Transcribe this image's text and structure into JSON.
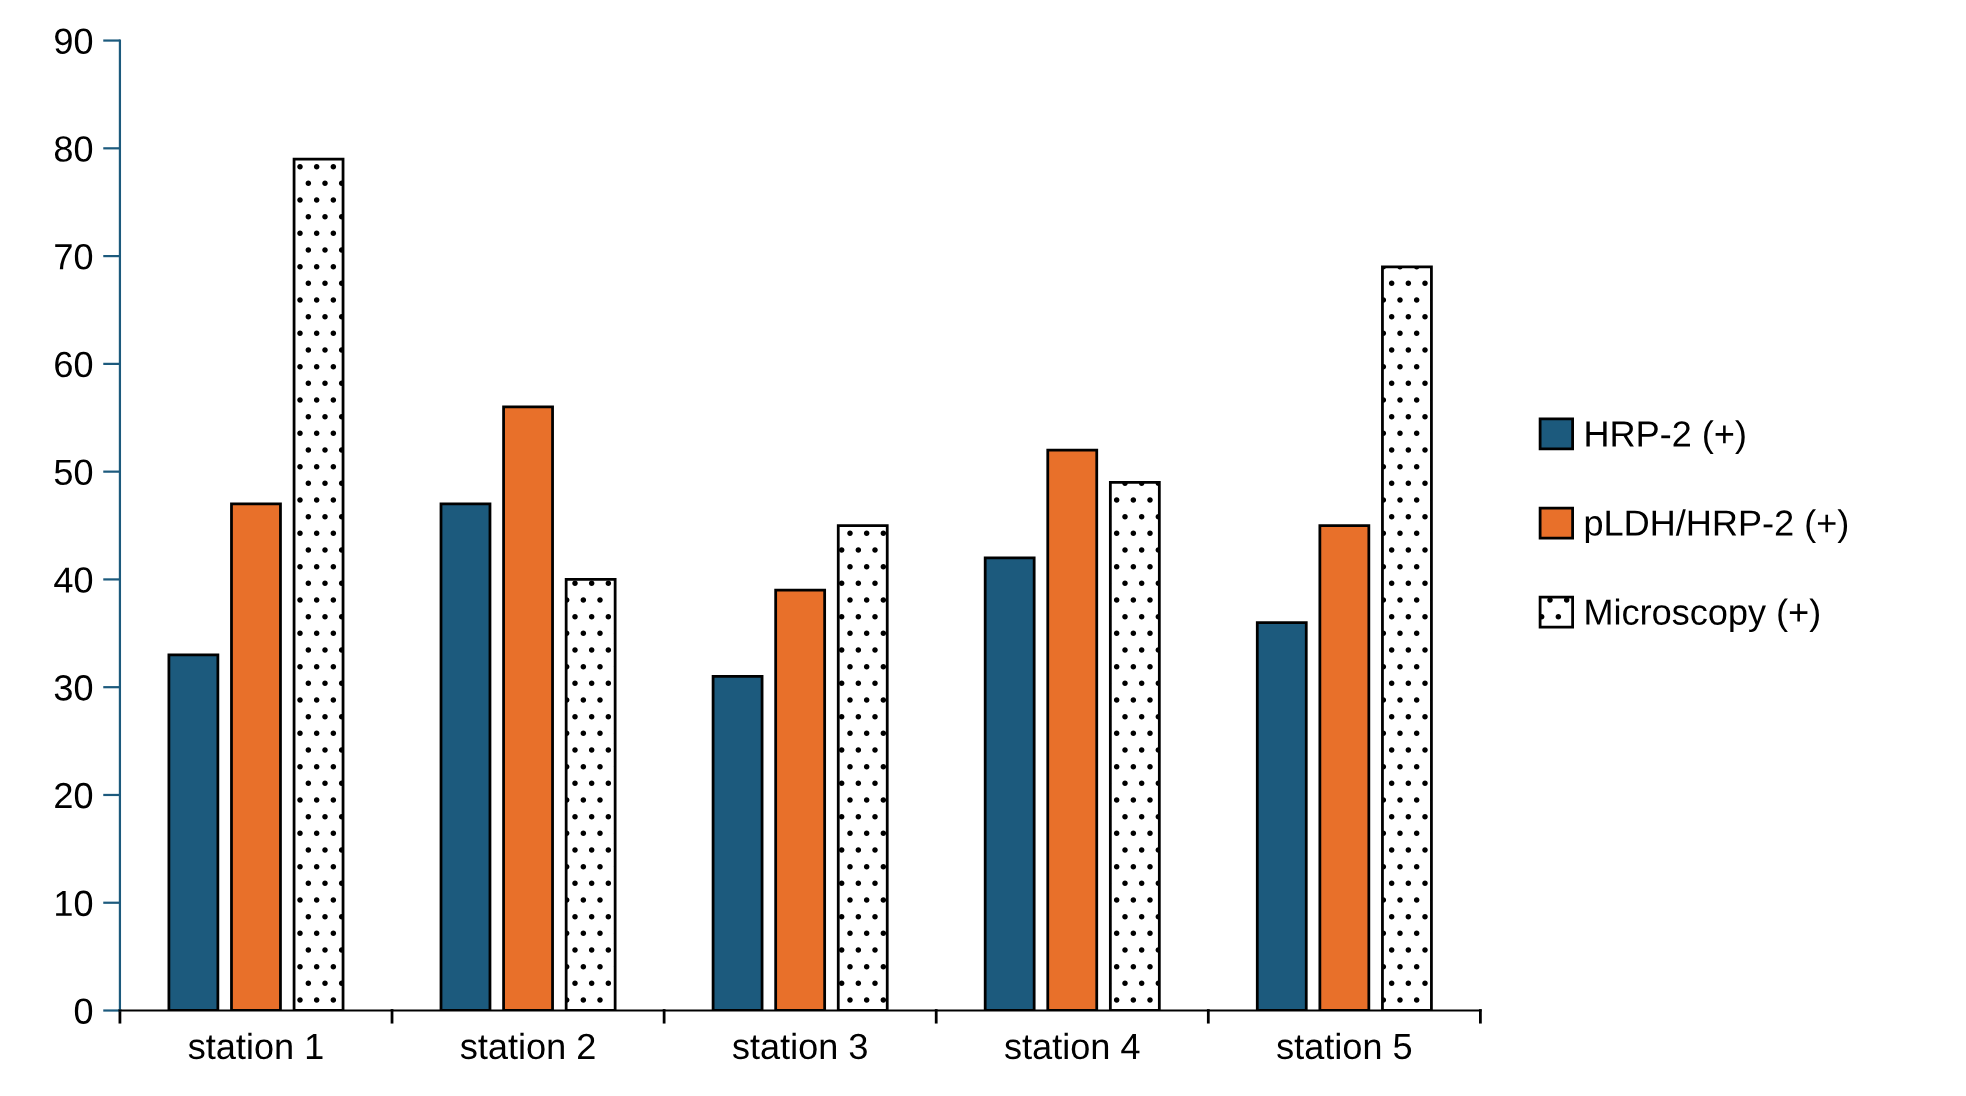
{
  "chart_data": {
    "type": "bar",
    "categories": [
      "station 1",
      "station 2",
      "station 3",
      "station 4",
      "station 5"
    ],
    "series": [
      {
        "name": "HRP-2 (+)",
        "color": "#1c5a7d",
        "values": [
          33,
          47,
          31,
          42,
          36
        ]
      },
      {
        "name": "pLDH/HRP-2 (+)",
        "color": "#e8702a",
        "values": [
          47,
          56,
          39,
          52,
          45
        ]
      },
      {
        "name": "Microscopy (+)",
        "color": "#ffffff",
        "values": [
          79,
          40,
          45,
          49,
          69
        ]
      }
    ],
    "ylim": [
      0,
      90
    ],
    "yticks": [
      0,
      10,
      20,
      30,
      40,
      50,
      60,
      70,
      80,
      90
    ],
    "grid": false,
    "legend": "right"
  }
}
